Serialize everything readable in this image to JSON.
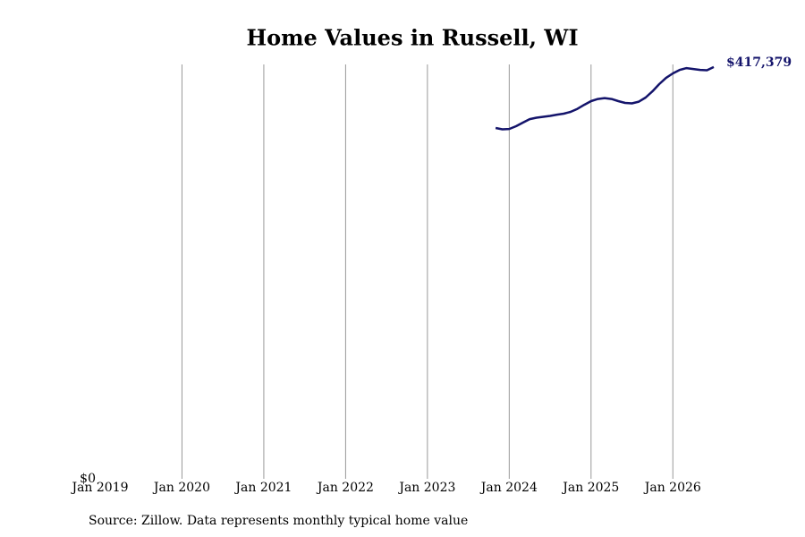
{
  "chart_data": {
    "type": "line",
    "title": "Home Values in Russell, WI",
    "source": "Source: Zillow. Data represents monthly typical home value",
    "x": [
      "2023-11",
      "2023-12",
      "2024-01",
      "2024-02",
      "2024-03",
      "2024-04",
      "2024-05",
      "2024-06",
      "2024-07",
      "2024-08",
      "2024-09",
      "2024-10",
      "2024-11",
      "2024-12",
      "2025-01",
      "2025-02",
      "2025-03",
      "2025-04",
      "2025-05",
      "2025-06",
      "2025-07",
      "2025-08",
      "2025-09",
      "2025-10",
      "2025-11",
      "2025-12",
      "2026-01",
      "2026-02",
      "2026-03",
      "2026-04",
      "2026-05",
      "2026-06",
      "2026-07"
    ],
    "series": [
      {
        "color": "#14146b",
        "values": [
          355600,
          354200,
          354600,
          357400,
          361000,
          364600,
          366000,
          366900,
          367800,
          369100,
          370100,
          371900,
          375000,
          379100,
          382800,
          385000,
          385900,
          385000,
          382800,
          381000,
          380500,
          382300,
          386400,
          392700,
          400000,
          406300,
          410900,
          414500,
          416300,
          415400,
          414500,
          414100,
          417379
        ],
        "value_labels": [
          null,
          null,
          null,
          null,
          null,
          null,
          null,
          null,
          null,
          null,
          null,
          null,
          null,
          null,
          null,
          null,
          null,
          null,
          null,
          null,
          null,
          null,
          null,
          null,
          null,
          null,
          null,
          null,
          null,
          null,
          null,
          null,
          "$417,379"
        ]
      }
    ],
    "xlim": [
      "2019-01",
      "2026-07"
    ],
    "xticks": [
      {
        "value": "2019-01",
        "label": "Jan 2019"
      },
      {
        "value": "2020-01",
        "label": "Jan 2020"
      },
      {
        "value": "2021-01",
        "label": "Jan 2021"
      },
      {
        "value": "2022-01",
        "label": "Jan 2022"
      },
      {
        "value": "2023-01",
        "label": "Jan 2023"
      },
      {
        "value": "2024-01",
        "label": "Jan 2024"
      },
      {
        "value": "2025-01",
        "label": "Jan 2025"
      },
      {
        "value": "2026-01",
        "label": "Jan 2026"
      }
    ],
    "ylim": [
      0,
      420000
    ],
    "yticks": [
      {
        "value": 0,
        "label": "$0"
      }
    ],
    "grid": true
  }
}
